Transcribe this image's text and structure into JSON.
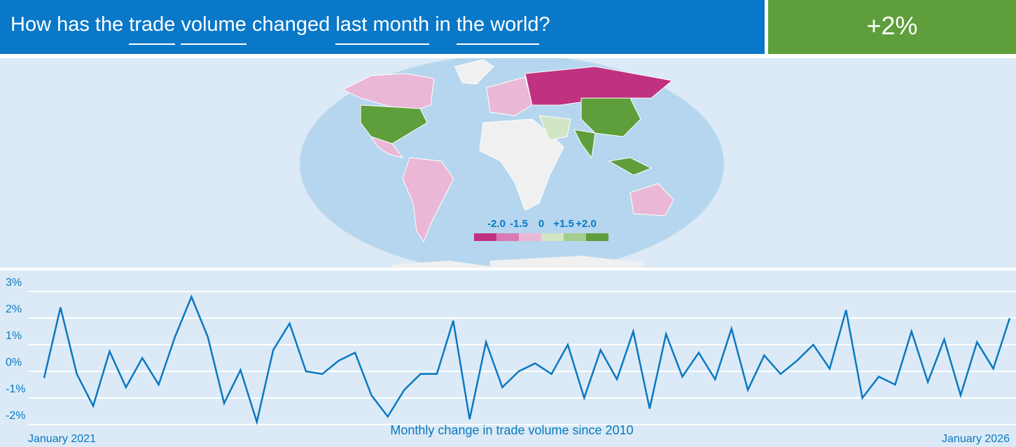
{
  "header": {
    "question": [
      {
        "text": "How has the",
        "select": false
      },
      {
        "text": "trade",
        "select": true
      },
      {
        "text": "volume",
        "select": true
      },
      {
        "text": "changed",
        "select": false
      },
      {
        "text": "last month",
        "select": true
      },
      {
        "text": "in",
        "select": false
      },
      {
        "text": "the world",
        "select": true
      },
      {
        "text": "?",
        "select": false
      }
    ],
    "answer": "+2%"
  },
  "map": {
    "legend": {
      "labels": [
        "-2.0",
        "-1.5",
        "0",
        "+1.5",
        "+2.0"
      ],
      "colors": [
        "#c0317f",
        "#d97bb2",
        "#ebb7d6",
        "#d2e5c4",
        "#a4cc8e",
        "#5e9e3b"
      ]
    }
  },
  "chart_data": {
    "type": "line",
    "title": "Monthly change in trade volume since 2010",
    "color": "#0a78c2",
    "grid": true,
    "categories": [
      "January 2021",
      null,
      null,
      null,
      null,
      null,
      null,
      null,
      null,
      null,
      null,
      null,
      null,
      null,
      null,
      null,
      null,
      null,
      null,
      null,
      null,
      null,
      null,
      null,
      null,
      null,
      null,
      null,
      null,
      null,
      null,
      null,
      null,
      null,
      null,
      null,
      null,
      null,
      null,
      null,
      null,
      null,
      null,
      null,
      null,
      null,
      null,
      null,
      null,
      null,
      null,
      null,
      null,
      null,
      null,
      null,
      null,
      null,
      null,
      "January 2026"
    ],
    "values": [
      -0.25,
      2.4,
      -0.1,
      -1.3,
      0.75,
      -0.6,
      0.5,
      -0.5,
      1.3,
      2.8,
      1.3,
      -1.2,
      0.05,
      -1.9,
      0.8,
      1.8,
      0.0,
      -0.1,
      0.4,
      0.7,
      -0.9,
      -1.7,
      -0.7,
      -0.1,
      -0.1,
      1.9,
      -1.8,
      1.1,
      -0.6,
      0.0,
      0.3,
      -0.1,
      1.0,
      -1.0,
      0.8,
      -0.3,
      1.5,
      -1.4,
      1.4,
      -0.2,
      0.7,
      -0.3,
      1.6,
      -0.7,
      0.6,
      -0.1,
      0.4,
      1.0,
      0.1,
      2.3,
      -1.0,
      -0.2,
      -0.5,
      1.5,
      -0.4,
      1.2,
      -0.9,
      1.1,
      0.1,
      2.0
    ],
    "ylim": [
      -2,
      3
    ],
    "yticks": [
      {
        "value": -2,
        "label": "-2%"
      },
      {
        "value": -1,
        "label": "-1%"
      },
      {
        "value": 0,
        "label": "0%"
      },
      {
        "value": 1,
        "label": "1%"
      },
      {
        "value": 2,
        "label": "2%"
      },
      {
        "value": 3,
        "label": "3%"
      }
    ]
  }
}
